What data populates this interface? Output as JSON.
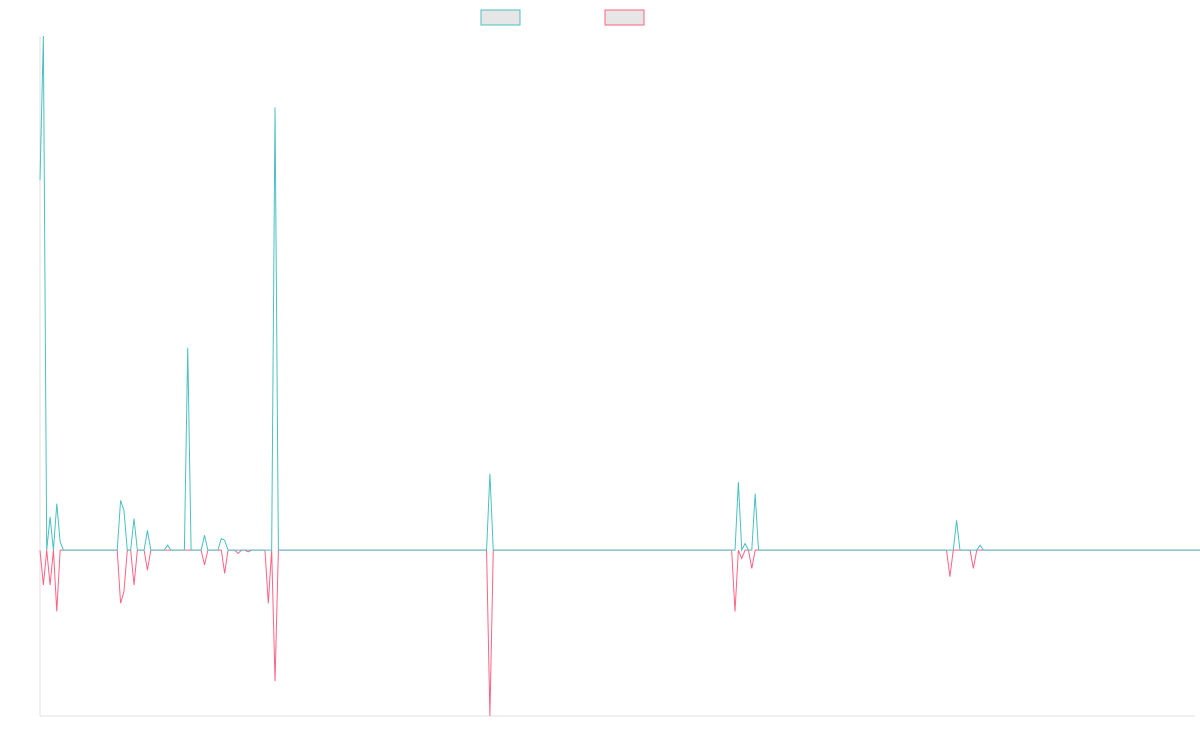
{
  "chart_data": {
    "type": "line",
    "title": "",
    "xlabel": "",
    "ylabel": "",
    "legend_position": "top-center",
    "grid": false,
    "x_points": 345,
    "ylim": [
      -100,
      310
    ],
    "colors": {
      "series1": "#4bc0c0",
      "series2": "#ff6384",
      "legend_fill": "#e6e6e6",
      "axis": "#e0e0e0",
      "background": "#ffffff"
    },
    "series": [
      {
        "name": "",
        "color": "#4bc0c0",
        "values": [
          223,
          310,
          0,
          20,
          0,
          28,
          5,
          0,
          0,
          0,
          0,
          0,
          0,
          0,
          0,
          0,
          0,
          0,
          0,
          0,
          0,
          0,
          0,
          0,
          30,
          24,
          0,
          0,
          19,
          0,
          0,
          0,
          12,
          0,
          0,
          0,
          0,
          0,
          3,
          0,
          0,
          0,
          0,
          0,
          122,
          0,
          0,
          0,
          0,
          9,
          0,
          0,
          0,
          0,
          7,
          6,
          0,
          0,
          0,
          0,
          0,
          0,
          0,
          0,
          0,
          0,
          0,
          0,
          0,
          0,
          267,
          0,
          0,
          0,
          0,
          0,
          0,
          0,
          0,
          0,
          0,
          0,
          0,
          0,
          0,
          0,
          0,
          0,
          0,
          0,
          0,
          0,
          0,
          0,
          0,
          0,
          0,
          0,
          0,
          0,
          0,
          0,
          0,
          0,
          0,
          0,
          0,
          0,
          0,
          0,
          0,
          0,
          0,
          0,
          0,
          0,
          0,
          0,
          0,
          0,
          0,
          0,
          0,
          0,
          0,
          0,
          0,
          0,
          0,
          0,
          0,
          0,
          0,
          0,
          46,
          0,
          0,
          0,
          0,
          0,
          0,
          0,
          0,
          0,
          0,
          0,
          0,
          0,
          0,
          0,
          0,
          0,
          0,
          0,
          0,
          0,
          0,
          0,
          0,
          0,
          0,
          0,
          0,
          0,
          0,
          0,
          0,
          0,
          0,
          0,
          0,
          0,
          0,
          0,
          0,
          0,
          0,
          0,
          0,
          0,
          0,
          0,
          0,
          0,
          0,
          0,
          0,
          0,
          0,
          0,
          0,
          0,
          0,
          0,
          0,
          0,
          0,
          0,
          0,
          0,
          0,
          0,
          0,
          0,
          0,
          0,
          0,
          0,
          41,
          0,
          4,
          0,
          0,
          34,
          0,
          0,
          0,
          0,
          0,
          0,
          0,
          0,
          0,
          0,
          0,
          0,
          0,
          0,
          0,
          0,
          0,
          0,
          0,
          0,
          0,
          0,
          0,
          0,
          0,
          0,
          0,
          0,
          0,
          0,
          0,
          0,
          0,
          0,
          0,
          0,
          0,
          0,
          0,
          0,
          0,
          0,
          0,
          0,
          0,
          0,
          0,
          0,
          0,
          0,
          0,
          0,
          0,
          0,
          0,
          0,
          0,
          0,
          0,
          18,
          0,
          0,
          0,
          0,
          0,
          0,
          3,
          0,
          0,
          0,
          0,
          0,
          0,
          0,
          0,
          0,
          0,
          0,
          0,
          0,
          0,
          0,
          0,
          0,
          0,
          0,
          0,
          0,
          0,
          0,
          0,
          0,
          0,
          0,
          0,
          0,
          0,
          0,
          0,
          0,
          0,
          0,
          0,
          0,
          0,
          0,
          0,
          0,
          0,
          0,
          0,
          0,
          0,
          0,
          0,
          0,
          0,
          0,
          0,
          0,
          0,
          0,
          0,
          0,
          0,
          0,
          0,
          0,
          0,
          0,
          0,
          0,
          0,
          0,
          0,
          0,
          0,
          0,
          0,
          0
        ]
      },
      {
        "name": "",
        "color": "#ff6384",
        "values": [
          0,
          -21,
          0,
          -21,
          0,
          -37,
          0,
          0,
          0,
          0,
          0,
          0,
          0,
          0,
          0,
          0,
          0,
          0,
          0,
          0,
          0,
          0,
          0,
          0,
          -32,
          -25,
          0,
          0,
          -21,
          0,
          0,
          0,
          -12,
          0,
          0,
          0,
          0,
          0,
          0,
          0,
          0,
          0,
          0,
          0,
          0,
          0,
          0,
          0,
          0,
          -9,
          0,
          0,
          0,
          0,
          0,
          -14,
          0,
          0,
          0,
          -2,
          0,
          0,
          -1,
          0,
          0,
          0,
          0,
          0,
          -32,
          0,
          -79,
          0,
          0,
          0,
          0,
          0,
          0,
          0,
          0,
          0,
          0,
          0,
          0,
          0,
          0,
          0,
          0,
          0,
          0,
          0,
          0,
          0,
          0,
          0,
          0,
          0,
          0,
          0,
          0,
          0,
          0,
          0,
          0,
          0,
          0,
          0,
          0,
          0,
          0,
          0,
          0,
          0,
          0,
          0,
          0,
          0,
          0,
          0,
          0,
          0,
          0,
          0,
          0,
          0,
          0,
          0,
          0,
          0,
          0,
          0,
          0,
          0,
          0,
          0,
          -100,
          0,
          0,
          0,
          0,
          0,
          0,
          0,
          0,
          0,
          0,
          0,
          0,
          0,
          0,
          0,
          0,
          0,
          0,
          0,
          0,
          0,
          0,
          0,
          0,
          0,
          0,
          0,
          0,
          0,
          0,
          0,
          0,
          0,
          0,
          0,
          0,
          0,
          0,
          0,
          0,
          0,
          0,
          0,
          0,
          0,
          0,
          0,
          0,
          0,
          0,
          0,
          0,
          0,
          0,
          0,
          0,
          0,
          0,
          0,
          0,
          0,
          0,
          0,
          0,
          0,
          0,
          0,
          0,
          0,
          0,
          0,
          0,
          -37,
          0,
          -5,
          0,
          0,
          -11,
          0,
          0,
          0,
          0,
          0,
          0,
          0,
          0,
          0,
          0,
          0,
          0,
          0,
          0,
          0,
          0,
          0,
          0,
          0,
          0,
          0,
          0,
          0,
          0,
          0,
          0,
          0,
          0,
          0,
          0,
          0,
          0,
          0,
          0,
          0,
          0,
          0,
          0,
          0,
          0,
          0,
          0,
          0,
          0,
          0,
          0,
          0,
          0,
          0,
          0,
          0,
          0,
          0,
          0,
          0,
          0,
          0,
          0,
          -16,
          0,
          0,
          0,
          0,
          0,
          0,
          -11,
          0,
          0,
          0,
          0,
          0,
          0,
          0,
          0,
          0,
          0,
          0,
          0,
          0,
          0,
          0,
          0,
          0,
          0,
          0,
          0,
          0,
          0,
          0,
          0,
          0,
          0,
          0,
          0,
          0,
          0,
          0,
          0,
          0,
          0,
          0,
          0,
          0,
          0,
          0,
          0,
          0,
          0,
          0,
          0,
          0,
          0,
          0,
          0,
          0,
          0,
          0,
          0,
          0,
          0,
          0,
          0,
          0,
          0,
          0,
          0,
          0,
          0,
          0,
          0,
          0,
          0,
          0,
          0,
          0,
          0,
          0,
          0,
          0
        ]
      }
    ]
  }
}
